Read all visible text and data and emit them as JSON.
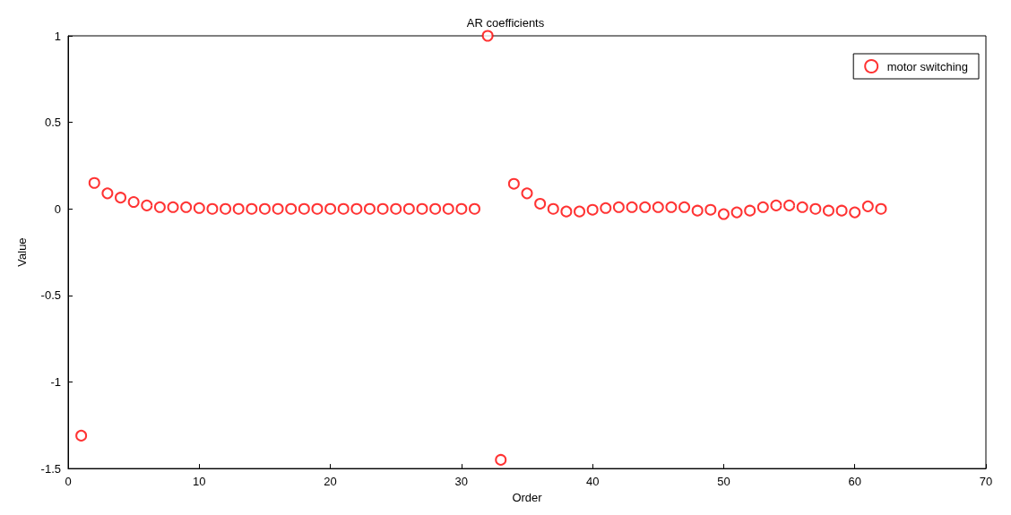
{
  "chart_data": {
    "type": "scatter",
    "title": "AR coefficients",
    "xlabel": "Order",
    "ylabel": "Value",
    "xlim": [
      0,
      70
    ],
    "xticks": [
      0,
      10,
      20,
      30,
      40,
      50,
      60,
      70
    ],
    "ylim": [
      -1.5,
      1
    ],
    "yticks": [
      -1.5,
      -1,
      -0.5,
      0,
      0.5,
      1
    ],
    "grid": false,
    "legend": "top right",
    "marker": "circle",
    "series": [
      {
        "name": "motor switching",
        "color": "#ff0000",
        "x": [
          1,
          2,
          3,
          4,
          5,
          6,
          7,
          8,
          9,
          10,
          11,
          12,
          13,
          14,
          15,
          16,
          17,
          18,
          19,
          20,
          21,
          22,
          23,
          24,
          25,
          26,
          27,
          28,
          29,
          30,
          31,
          32,
          33,
          34,
          35,
          36,
          37,
          38,
          39,
          40,
          41,
          42,
          43,
          44,
          45,
          46,
          47,
          48,
          49,
          50,
          51,
          52,
          53,
          54,
          55,
          56,
          57,
          58,
          59,
          60,
          61,
          62
        ],
        "values": [
          -1.31,
          0.15,
          0.09,
          0.065,
          0.04,
          0.02,
          0.01,
          0.01,
          0.01,
          0.005,
          0,
          0,
          0,
          0,
          0,
          0,
          0,
          0,
          0,
          0,
          0,
          0,
          0,
          0,
          0,
          0,
          0,
          0,
          0,
          0,
          0,
          1,
          -1.45,
          0.145,
          0.09,
          0.03,
          0,
          -0.015,
          -0.015,
          -0.005,
          0.005,
          0.01,
          0.01,
          0.01,
          0.01,
          0.01,
          0.01,
          -0.01,
          -0.005,
          -0.03,
          -0.02,
          -0.01,
          0.01,
          0.02,
          0.02,
          0.01,
          0,
          -0.01,
          -0.01,
          -0.02,
          0.015,
          0
        ]
      }
    ]
  }
}
